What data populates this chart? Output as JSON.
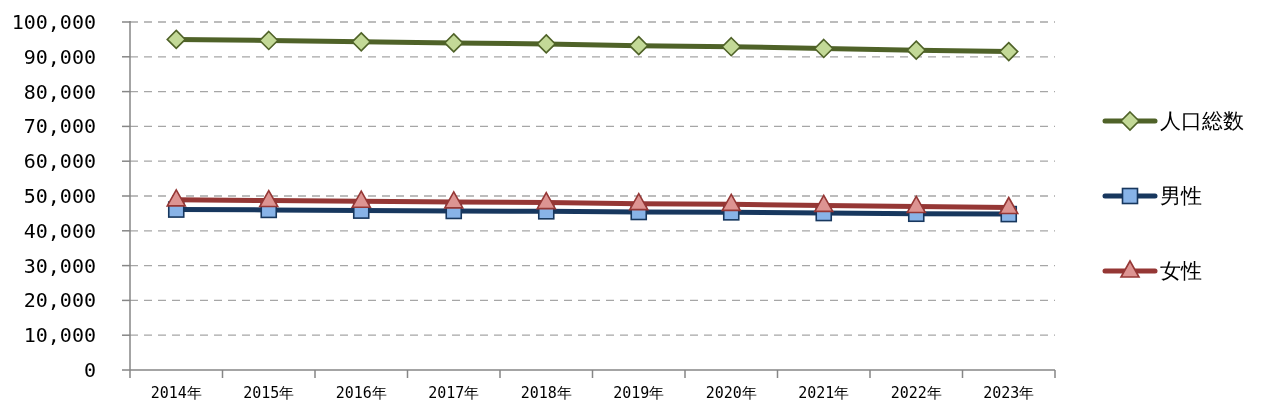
{
  "chart_data": {
    "type": "line",
    "categories": [
      "2014年",
      "2015年",
      "2016年",
      "2017年",
      "2018年",
      "2019年",
      "2020年",
      "2021年",
      "2022年",
      "2023年"
    ],
    "series": [
      {
        "name": "人口総数",
        "color": "#4f6228",
        "marker": "diamond",
        "values": [
          95000,
          94700,
          94300,
          94000,
          93700,
          93200,
          92900,
          92400,
          91900,
          91500
        ]
      },
      {
        "name": "男性",
        "color": "#17375e",
        "marker": "square",
        "values": [
          46100,
          46000,
          45800,
          45700,
          45600,
          45400,
          45300,
          45100,
          44900,
          44800
        ]
      },
      {
        "name": "女性",
        "color": "#953735",
        "marker": "triangle",
        "values": [
          48900,
          48700,
          48500,
          48300,
          48100,
          47800,
          47600,
          47300,
          47000,
          46700
        ]
      }
    ],
    "ylim": [
      0,
      100000
    ],
    "yticks": [
      0,
      {
        "value": 10000,
        "label": "10,000"
      },
      {
        "value": 20000,
        "label": "20,000"
      },
      {
        "value": 30000,
        "label": "30,000"
      },
      {
        "value": 40000,
        "label": "40,000"
      },
      {
        "value": 50000,
        "label": "50,000"
      },
      {
        "value": 60000,
        "label": "60,000"
      },
      {
        "value": 70000,
        "label": "70,000"
      },
      {
        "value": 80000,
        "label": "80,000"
      },
      {
        "value": 90000,
        "label": "90,000"
      },
      {
        "value": 100000,
        "label": "100,000"
      }
    ],
    "grid": "y",
    "legend": "right",
    "line_style": "solid"
  }
}
